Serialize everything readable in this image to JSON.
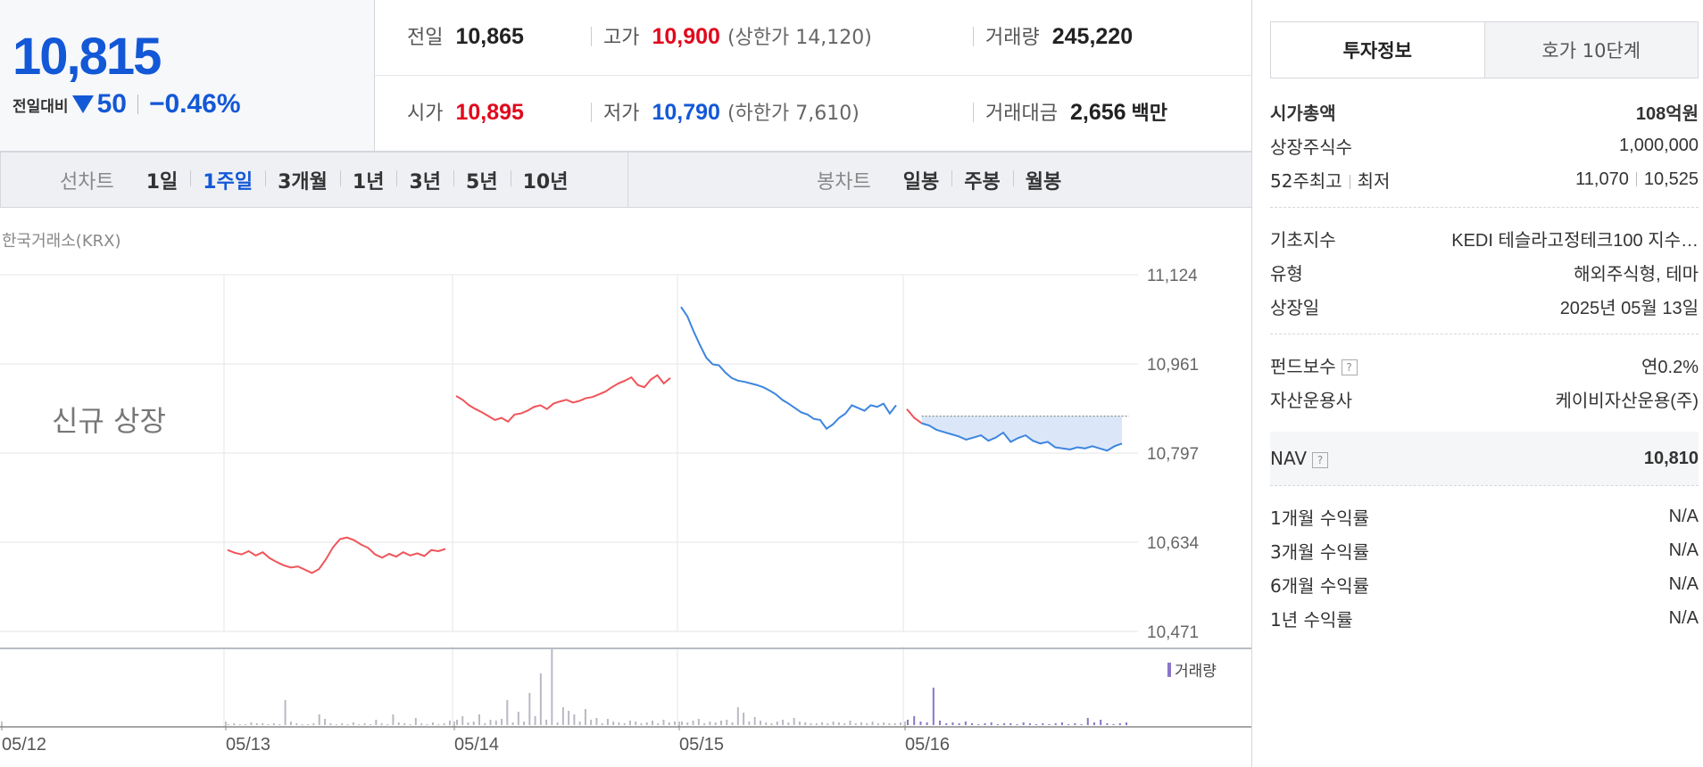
{
  "quote": {
    "price": "10,815",
    "prev_label": "전일대비",
    "change": "50",
    "change_pct": "−0.46%"
  },
  "stats": {
    "prev_close_label": "전일",
    "prev_close": "10,865",
    "high_label": "고가",
    "high": "10,900",
    "upper_limit": "(상한가 14,120)",
    "volume_label": "거래량",
    "volume": "245,220",
    "open_label": "시가",
    "open": "10,895",
    "low_label": "저가",
    "low": "10,790",
    "lower_limit": "(하한가 7,610)",
    "value_label": "거래대금",
    "value": "2,656",
    "value_unit": "백만"
  },
  "line_tabs": {
    "label": "선차트",
    "items": [
      "1일",
      "1주일",
      "3개월",
      "1년",
      "3년",
      "5년",
      "10년"
    ],
    "active": "1주일"
  },
  "candle_tabs": {
    "label": "봉차트",
    "items": [
      "일봉",
      "주봉",
      "월봉"
    ]
  },
  "exchange": "한국거래소(KRX)",
  "chart_data": {
    "type": "line",
    "watermark": "신규 상장",
    "y_ticks": [
      "11,124",
      "10,961",
      "10,797",
      "10,634",
      "10,471"
    ],
    "ylim": [
      10471,
      11124
    ],
    "x_ticks": [
      "05/12",
      "05/13",
      "05/14",
      "05/15",
      "05/16"
    ],
    "prev_close": 10865,
    "volume_legend": "거래량",
    "colors": {
      "up": "#f0545a",
      "down": "#3d85e0",
      "volume": "#b9b9c4",
      "volume_today": "#8a76c6",
      "fill": "#dbe7f8"
    },
    "series": [
      {
        "day": "05/13",
        "values": [
          10620,
          10615,
          10612,
          10618,
          10610,
          10616,
          10605,
          10598,
          10592,
          10588,
          10590,
          10584,
          10578,
          10585,
          10603,
          10625,
          10640,
          10643,
          10638,
          10630,
          10624,
          10612,
          10606,
          10613,
          10608,
          10616,
          10610,
          10614,
          10609,
          10620,
          10618,
          10622
        ]
      },
      {
        "day": "05/14",
        "values": [
          10902,
          10895,
          10885,
          10878,
          10872,
          10865,
          10858,
          10862,
          10855,
          10868,
          10870,
          10875,
          10882,
          10885,
          10878,
          10888,
          10892,
          10895,
          10890,
          10893,
          10898,
          10900,
          10905,
          10910,
          10918,
          10925,
          10930,
          10936,
          10922,
          10918,
          10932,
          10940,
          10925,
          10935
        ]
      },
      {
        "day": "05/15",
        "values": [
          11065,
          11048,
          11020,
          10995,
          10972,
          10960,
          10958,
          10945,
          10935,
          10930,
          10928,
          10925,
          10922,
          10918,
          10912,
          10905,
          10895,
          10888,
          10880,
          10872,
          10868,
          10860,
          10858,
          10842,
          10850,
          10862,
          10870,
          10885,
          10880,
          10875,
          10885,
          10882,
          10888,
          10870,
          10885
        ]
      },
      {
        "day": "05/16",
        "values": [
          10878,
          10862,
          10852,
          10848,
          10840,
          10836,
          10832,
          10828,
          10822,
          10826,
          10830,
          10820,
          10826,
          10835,
          10818,
          10825,
          10830,
          10820,
          10815,
          10818,
          10808,
          10806,
          10804,
          10808,
          10806,
          10810,
          10806,
          10802,
          10810,
          10815
        ]
      }
    ],
    "volume": [
      {
        "day": "05/13",
        "values": [
          1,
          2,
          1,
          1,
          3,
          2,
          2,
          1,
          2,
          1,
          28,
          4,
          2,
          1,
          1,
          2,
          12,
          7,
          2,
          1,
          2,
          1,
          3,
          1,
          2,
          1,
          6,
          2,
          1,
          12,
          3,
          2,
          1,
          8,
          2,
          1,
          3,
          1,
          2,
          5
        ]
      },
      {
        "day": "05/14",
        "values": [
          6,
          10,
          3,
          4,
          12,
          2,
          6,
          5,
          7,
          28,
          3,
          15,
          4,
          36,
          10,
          58,
          6,
          85,
          3,
          20,
          16,
          12,
          4,
          18,
          6,
          8,
          2,
          7,
          4,
          3,
          2,
          5,
          4,
          2,
          3,
          5,
          2,
          6,
          3,
          4
        ]
      },
      {
        "day": "05/15",
        "values": [
          4,
          3,
          5,
          7,
          2,
          4,
          3,
          5,
          6,
          3,
          20,
          14,
          4,
          9,
          5,
          3,
          2,
          4,
          6,
          3,
          8,
          4,
          3,
          2,
          2,
          3,
          2,
          4,
          3,
          2,
          5,
          2,
          3,
          2,
          4,
          2,
          3,
          2,
          2,
          3
        ]
      },
      {
        "day": "05/16",
        "values": [
          6,
          10,
          4,
          3,
          42,
          5,
          2,
          3,
          2,
          4,
          2,
          1,
          2,
          3,
          1,
          2,
          2,
          1,
          3,
          2,
          1,
          2,
          1,
          2,
          3,
          1,
          2,
          1,
          8,
          3,
          6,
          2,
          1,
          2,
          3
        ]
      }
    ]
  },
  "panel": {
    "tabs": [
      "투자정보",
      "호가 10단계"
    ],
    "active_tab": "투자정보",
    "rows1": [
      {
        "label": "시가총액",
        "value": "108억원",
        "bold": true
      },
      {
        "label": "상장주식수",
        "value": "1,000,000"
      }
    ],
    "high52_label": "52주최고",
    "low52_label": "최저",
    "high52": "11,070",
    "low52": "10,525",
    "rows2": [
      {
        "label": "기초지수",
        "value": "KEDI 테슬라고정테크100 지수…"
      },
      {
        "label": "유형",
        "value": "해외주식형, 테마"
      },
      {
        "label": "상장일",
        "value": "2025년 05월 13일"
      }
    ],
    "fee_label": "펀드보수",
    "fee": "연0.2%",
    "manager_label": "자산운용사",
    "manager": "케이비자산운용(주)",
    "nav_label": "NAV",
    "nav": "10,810",
    "help_glyph": "?",
    "returns": [
      {
        "label": "1개월 수익률",
        "value": "N/A"
      },
      {
        "label": "3개월 수익률",
        "value": "N/A"
      },
      {
        "label": "6개월 수익률",
        "value": "N/A"
      },
      {
        "label": "1년 수익률",
        "value": "N/A"
      }
    ]
  }
}
